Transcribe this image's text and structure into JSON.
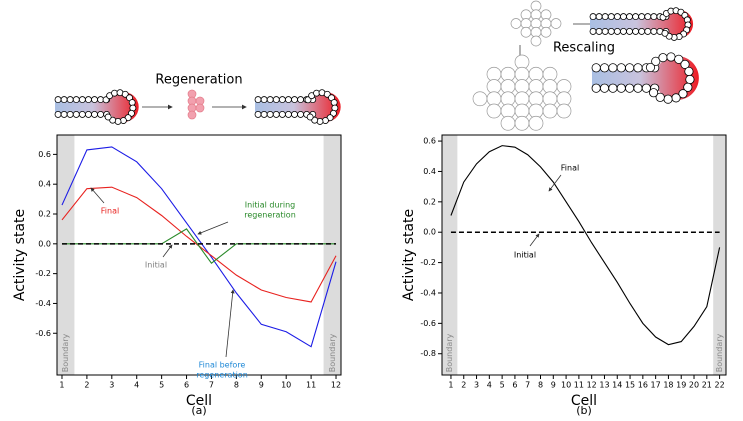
{
  "chart_data": [
    {
      "type": "line",
      "title": "Regeneration",
      "panel_label": "(a)",
      "xlabel": "Cell",
      "ylabel": "Activity state",
      "boundary_label": "Boundary",
      "x": [
        1,
        2,
        3,
        4,
        5,
        6,
        7,
        8,
        9,
        10,
        11,
        12
      ],
      "xlim": [
        0.8,
        12.2
      ],
      "xticks": [
        1,
        2,
        3,
        4,
        5,
        6,
        7,
        8,
        9,
        10,
        11,
        12
      ],
      "ylim": [
        -0.88,
        0.73
      ],
      "yticks": [
        0.6,
        0.4,
        0.2,
        {
          "value": 0,
          "label": "0.0"
        },
        -0.2,
        -0.4,
        -0.6
      ],
      "series": [
        {
          "color": "#1c1ce6",
          "values": [
            0.26,
            0.63,
            0.65,
            0.55,
            0.37,
            0.14,
            -0.09,
            -0.33,
            -0.54,
            -0.59,
            -0.69,
            -0.12
          ]
        },
        {
          "color": "#e8221f",
          "values": [
            0.16,
            0.37,
            0.38,
            0.31,
            0.19,
            0.05,
            -0.08,
            -0.21,
            -0.31,
            -0.36,
            -0.39,
            -0.08
          ]
        },
        {
          "color": "#2a8a2a",
          "values": [
            0,
            0,
            0,
            0,
            0,
            0.1,
            -0.13,
            0,
            0,
            0,
            0,
            0
          ]
        },
        {
          "color": "#000000",
          "dashed": true,
          "values": [
            0,
            0,
            0,
            0,
            0,
            0,
            0,
            0,
            0,
            0,
            0,
            0
          ]
        }
      ],
      "annotations": [
        {
          "lines": [
            "Final"
          ],
          "color": "#e8221f"
        },
        {
          "lines": [
            "Initial during",
            "regeneration"
          ],
          "color": "#2a8a2a"
        },
        {
          "lines": [
            "Initial"
          ],
          "color": "#808080"
        },
        {
          "lines": [
            "Final before",
            "regeneration"
          ],
          "color": "#1e88d6"
        }
      ]
    },
    {
      "type": "line",
      "title": "Rescaling",
      "panel_label": "(b)",
      "xlabel": "Cell",
      "ylabel": "Activity state",
      "boundary_label": "Boundary",
      "x": [
        1,
        2,
        3,
        4,
        5,
        6,
        7,
        8,
        9,
        10,
        11,
        12,
        13,
        14,
        15,
        16,
        17,
        18,
        19,
        20,
        21,
        22
      ],
      "xlim": [
        0.3,
        22.5
      ],
      "xticks": [
        1,
        2,
        3,
        4,
        5,
        6,
        7,
        8,
        9,
        10,
        11,
        12,
        13,
        14,
        15,
        16,
        17,
        18,
        19,
        20,
        21,
        22
      ],
      "ylim": [
        -0.94,
        0.64
      ],
      "yticks": [
        0.6,
        0.4,
        0.2,
        {
          "value": 0,
          "label": "0.0"
        },
        -0.2,
        -0.4,
        -0.6,
        -0.8
      ],
      "series": [
        {
          "color": "#000000",
          "values": [
            0.11,
            0.33,
            0.45,
            0.53,
            0.57,
            0.56,
            0.51,
            0.43,
            0.33,
            0.2,
            0.07,
            -0.07,
            -0.2,
            -0.33,
            -0.47,
            -0.6,
            -0.69,
            -0.74,
            -0.72,
            -0.62,
            -0.49,
            -0.1
          ]
        },
        {
          "color": "#000000",
          "dashed": true,
          "values": [
            0,
            0,
            0,
            0,
            0,
            0,
            0,
            0,
            0,
            0,
            0,
            0,
            0,
            0,
            0,
            0,
            0,
            0,
            0,
            0,
            0,
            0
          ]
        }
      ],
      "annotations": [
        {
          "lines": [
            "Final"
          ],
          "color": "#000000"
        },
        {
          "lines": [
            "Initial"
          ],
          "color": "#000000"
        }
      ]
    }
  ]
}
